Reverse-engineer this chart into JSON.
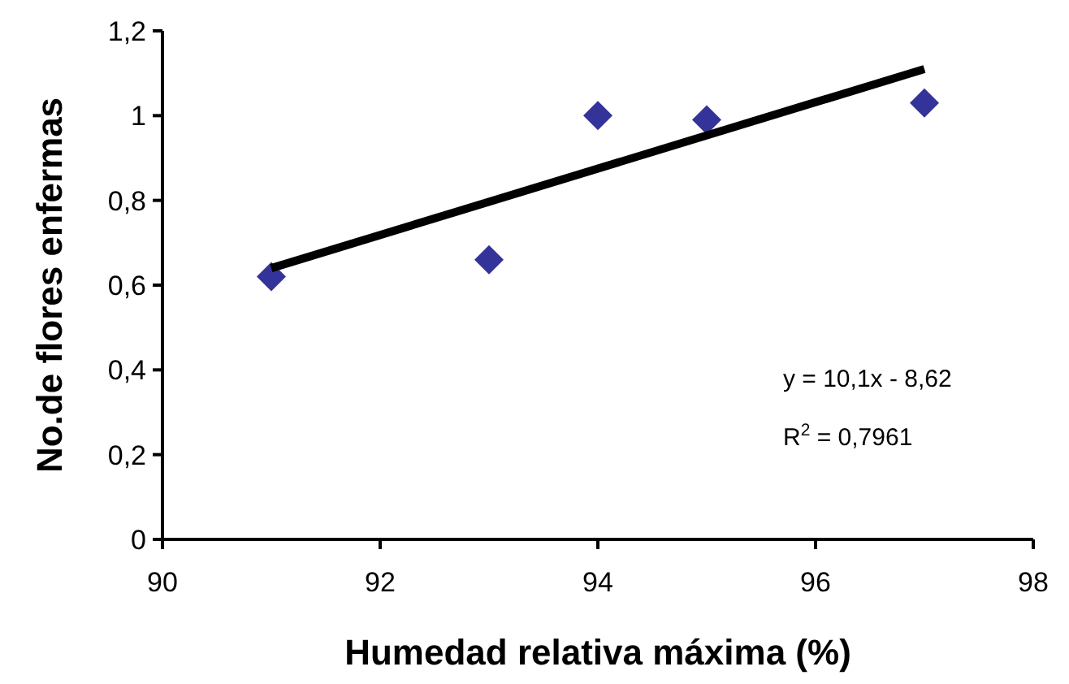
{
  "chart_data": {
    "type": "scatter",
    "xlabel": "Humedad relativa máxima (%)",
    "ylabel": "No.de flores enfermas",
    "x": [
      91,
      93,
      94,
      95,
      97
    ],
    "series": [
      {
        "color": "#333399",
        "marker": "diamond",
        "values": [
          0.62,
          0.66,
          1.0,
          0.99,
          1.03
        ]
      },
      {
        "type": "line",
        "color": "#000000",
        "marker": "none",
        "x": [
          91,
          97
        ],
        "values": [
          0.64,
          1.11
        ]
      }
    ],
    "xlim": [
      90,
      98
    ],
    "xticks": [
      90,
      92,
      94,
      96,
      98
    ],
    "ylim": [
      0,
      1.2
    ],
    "yticks": [
      0,
      {
        "value": 0.2,
        "label": "0,2"
      },
      {
        "value": 0.4,
        "label": "0,4"
      },
      {
        "value": 0.6,
        "label": "0,6"
      },
      {
        "value": 0.8,
        "label": "0,8"
      },
      1,
      {
        "value": 1.2,
        "label": "1,2"
      }
    ],
    "annotations": [
      "y = 10,1x - 8,62",
      "R$^{2}$ = 0,7961"
    ],
    "grid": false
  }
}
